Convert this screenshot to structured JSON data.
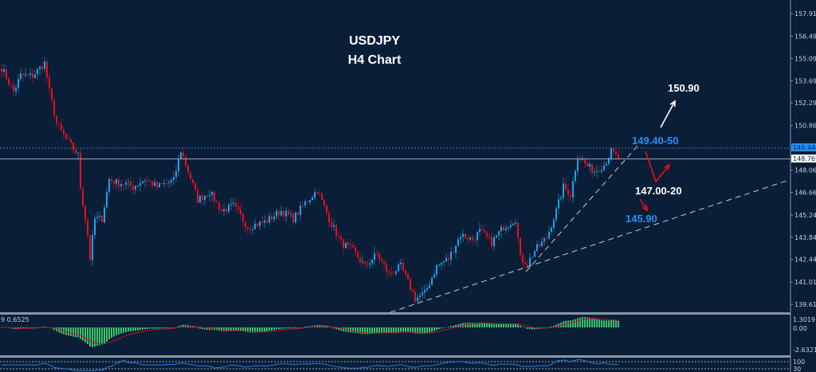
{
  "chart_data": {
    "type": "candlestick",
    "title": "USDJPY",
    "subtitle": "H4 Chart",
    "ylim": [
      139.0,
      158.5
    ],
    "y_ticks": [
      "157.915",
      "156.490",
      "155.090",
      "153.690",
      "152.290",
      "150.865",
      "148.065",
      "146.665",
      "145.240",
      "143.840",
      "142.440",
      "141.015",
      "139.615"
    ],
    "current_bid_label": "149.446",
    "current_price_label": "148.769",
    "current_bid": 149.446,
    "current_price": 148.769,
    "approx_close_path": [
      [
        0,
        154.5
      ],
      [
        5,
        153
      ],
      [
        8,
        154
      ],
      [
        13,
        154
      ],
      [
        18,
        154.8
      ],
      [
        20,
        153
      ],
      [
        23,
        151
      ],
      [
        27,
        150
      ],
      [
        32,
        149
      ],
      [
        33,
        147
      ],
      [
        36,
        144
      ],
      [
        37,
        142.5
      ],
      [
        39,
        145
      ],
      [
        42,
        145
      ],
      [
        45,
        147.5
      ],
      [
        48,
        147.3
      ],
      [
        52,
        147.2
      ],
      [
        55,
        147
      ],
      [
        60,
        147.5
      ],
      [
        65,
        147
      ],
      [
        72,
        147.4
      ],
      [
        75,
        149.3
      ],
      [
        78,
        148
      ],
      [
        82,
        146.2
      ],
      [
        87,
        146.7
      ],
      [
        92,
        145.5
      ],
      [
        97,
        145.8
      ],
      [
        103,
        144.5
      ],
      [
        110,
        144.8
      ],
      [
        117,
        145.5
      ],
      [
        122,
        145
      ],
      [
        127,
        146
      ],
      [
        132,
        146.8
      ],
      [
        137,
        145
      ],
      [
        142,
        143.5
      ],
      [
        147,
        143
      ],
      [
        152,
        142
      ],
      [
        157,
        142.8
      ],
      [
        162,
        141.5
      ],
      [
        167,
        142
      ],
      [
        170,
        141
      ],
      [
        173,
        140
      ],
      [
        177,
        140.3
      ],
      [
        182,
        142
      ],
      [
        187,
        142.5
      ],
      [
        192,
        144
      ],
      [
        197,
        143.7
      ],
      [
        200,
        144.2
      ],
      [
        205,
        143.5
      ],
      [
        210,
        144.5
      ],
      [
        215,
        145
      ],
      [
        217,
        142.5
      ],
      [
        220,
        142.2
      ],
      [
        223,
        143
      ],
      [
        228,
        143.8
      ],
      [
        232,
        145.5
      ],
      [
        235,
        147
      ],
      [
        238,
        146.5
      ],
      [
        241,
        149
      ],
      [
        245,
        148.3
      ],
      [
        248,
        148
      ],
      [
        252,
        148.4
      ],
      [
        255,
        149.2
      ],
      [
        258,
        148.8
      ]
    ],
    "candle_colors": {
      "up": "#1fa3e8",
      "down": "#e8101a"
    },
    "annotations": [
      {
        "text": "150.90",
        "color": "#ffffff"
      },
      {
        "text": "149.40-50",
        "color": "#2b8ff0"
      },
      {
        "text": "147.00-20",
        "color": "#ffffff"
      },
      {
        "text": "145.90",
        "color": "#2b8ff0"
      }
    ],
    "trendlines": "two dashed rising support lines",
    "macd": {
      "label": "9 0.6525",
      "y_ticks": [
        "1.3019",
        "0.00",
        "-2.6321"
      ],
      "histogram_color": "#3cc46a",
      "signal_color": "#c0102a"
    },
    "rsi": {
      "y_ticks": [
        "100",
        "30"
      ],
      "line_color": "#2a7fd4"
    },
    "grid": false,
    "background": "#0a1e38"
  }
}
